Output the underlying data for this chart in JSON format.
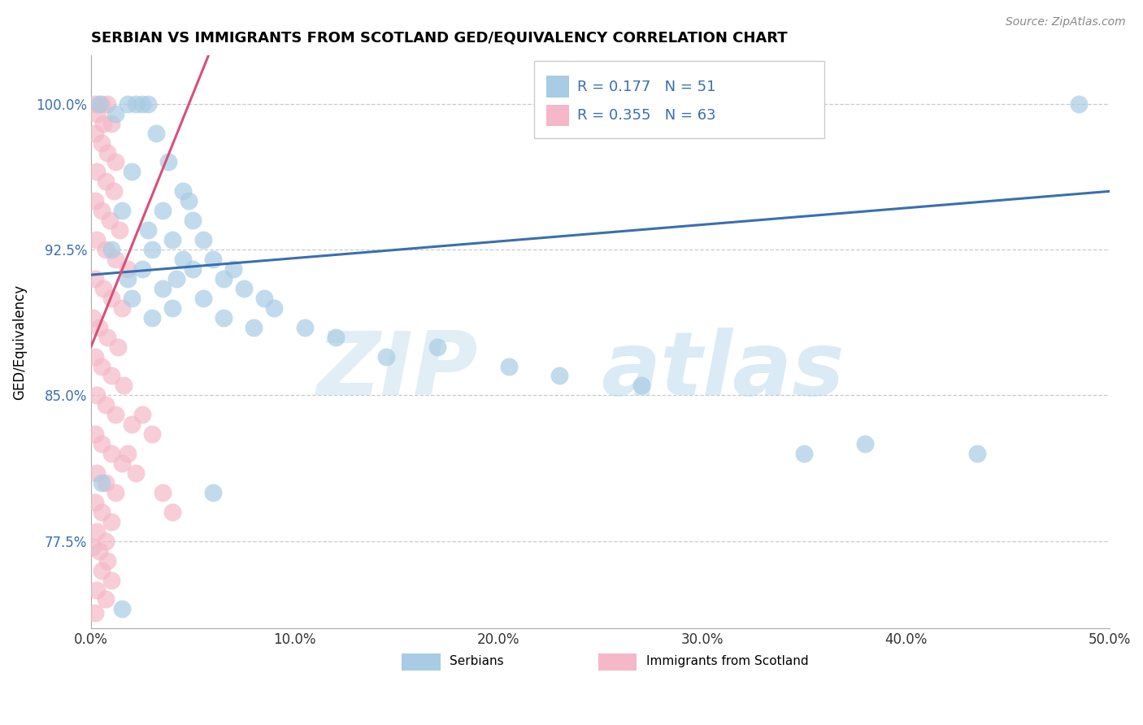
{
  "title": "SERBIAN VS IMMIGRANTS FROM SCOTLAND GED/EQUIVALENCY CORRELATION CHART",
  "source": "Source: ZipAtlas.com",
  "ylabel": "GED/Equivalency",
  "xlim": [
    0.0,
    50.0
  ],
  "ylim": [
    73.0,
    102.5
  ],
  "yticks": [
    77.5,
    85.0,
    92.5,
    100.0
  ],
  "ytick_labels": [
    "77.5%",
    "85.0%",
    "92.5%",
    "100.0%"
  ],
  "xticks": [
    0.0,
    10.0,
    20.0,
    30.0,
    40.0,
    50.0
  ],
  "xtick_labels": [
    "0.0%",
    "10.0%",
    "20.0%",
    "30.0%",
    "40.0%",
    "50.0%"
  ],
  "legend_R_blue": "R = 0.177",
  "legend_N_blue": "N = 51",
  "legend_R_pink": "R = 0.355",
  "legend_N_pink": "N = 63",
  "blue_color": "#a8cce4",
  "pink_color": "#f4b8c8",
  "blue_line_color": "#3a6faf",
  "pink_line_color": "#d94f78",
  "blue_trendline": [
    [
      0,
      91.2
    ],
    [
      50,
      95.5
    ]
  ],
  "pink_trendline": [
    [
      0,
      87.5
    ],
    [
      5,
      100.5
    ]
  ],
  "blue_scatter": [
    [
      0.4,
      100.0
    ],
    [
      1.8,
      100.0
    ],
    [
      2.2,
      100.0
    ],
    [
      2.5,
      100.0
    ],
    [
      2.8,
      100.0
    ],
    [
      1.2,
      99.5
    ],
    [
      3.2,
      98.5
    ],
    [
      3.8,
      97.0
    ],
    [
      2.0,
      96.5
    ],
    [
      4.5,
      95.5
    ],
    [
      4.8,
      95.0
    ],
    [
      1.5,
      94.5
    ],
    [
      3.5,
      94.5
    ],
    [
      5.0,
      94.0
    ],
    [
      2.8,
      93.5
    ],
    [
      4.0,
      93.0
    ],
    [
      5.5,
      93.0
    ],
    [
      1.0,
      92.5
    ],
    [
      3.0,
      92.5
    ],
    [
      4.5,
      92.0
    ],
    [
      6.0,
      92.0
    ],
    [
      2.5,
      91.5
    ],
    [
      5.0,
      91.5
    ],
    [
      7.0,
      91.5
    ],
    [
      1.8,
      91.0
    ],
    [
      4.2,
      91.0
    ],
    [
      6.5,
      91.0
    ],
    [
      3.5,
      90.5
    ],
    [
      7.5,
      90.5
    ],
    [
      2.0,
      90.0
    ],
    [
      5.5,
      90.0
    ],
    [
      8.5,
      90.0
    ],
    [
      4.0,
      89.5
    ],
    [
      9.0,
      89.5
    ],
    [
      3.0,
      89.0
    ],
    [
      6.5,
      89.0
    ],
    [
      8.0,
      88.5
    ],
    [
      10.5,
      88.5
    ],
    [
      12.0,
      88.0
    ],
    [
      14.5,
      87.0
    ],
    [
      17.0,
      87.5
    ],
    [
      20.5,
      86.5
    ],
    [
      23.0,
      86.0
    ],
    [
      27.0,
      85.5
    ],
    [
      35.0,
      82.0
    ],
    [
      38.0,
      82.5
    ],
    [
      43.5,
      82.0
    ],
    [
      48.5,
      100.0
    ],
    [
      0.5,
      80.5
    ],
    [
      1.5,
      74.0
    ],
    [
      6.0,
      80.0
    ]
  ],
  "pink_scatter": [
    [
      0.2,
      100.0
    ],
    [
      0.5,
      100.0
    ],
    [
      0.8,
      100.0
    ],
    [
      0.3,
      99.5
    ],
    [
      0.6,
      99.0
    ],
    [
      1.0,
      99.0
    ],
    [
      0.2,
      98.5
    ],
    [
      0.5,
      98.0
    ],
    [
      0.8,
      97.5
    ],
    [
      1.2,
      97.0
    ],
    [
      0.3,
      96.5
    ],
    [
      0.7,
      96.0
    ],
    [
      1.1,
      95.5
    ],
    [
      0.2,
      95.0
    ],
    [
      0.5,
      94.5
    ],
    [
      0.9,
      94.0
    ],
    [
      1.4,
      93.5
    ],
    [
      0.3,
      93.0
    ],
    [
      0.7,
      92.5
    ],
    [
      1.2,
      92.0
    ],
    [
      1.8,
      91.5
    ],
    [
      0.2,
      91.0
    ],
    [
      0.6,
      90.5
    ],
    [
      1.0,
      90.0
    ],
    [
      1.5,
      89.5
    ],
    [
      0.1,
      89.0
    ],
    [
      0.4,
      88.5
    ],
    [
      0.8,
      88.0
    ],
    [
      1.3,
      87.5
    ],
    [
      0.2,
      87.0
    ],
    [
      0.5,
      86.5
    ],
    [
      1.0,
      86.0
    ],
    [
      1.6,
      85.5
    ],
    [
      0.3,
      85.0
    ],
    [
      0.7,
      84.5
    ],
    [
      1.2,
      84.0
    ],
    [
      2.0,
      83.5
    ],
    [
      0.2,
      83.0
    ],
    [
      0.5,
      82.5
    ],
    [
      1.0,
      82.0
    ],
    [
      1.5,
      81.5
    ],
    [
      0.3,
      81.0
    ],
    [
      0.7,
      80.5
    ],
    [
      1.2,
      80.0
    ],
    [
      0.2,
      79.5
    ],
    [
      0.5,
      79.0
    ],
    [
      1.0,
      78.5
    ],
    [
      0.3,
      78.0
    ],
    [
      0.7,
      77.5
    ],
    [
      0.4,
      77.0
    ],
    [
      0.8,
      76.5
    ],
    [
      0.5,
      76.0
    ],
    [
      1.0,
      75.5
    ],
    [
      0.3,
      75.0
    ],
    [
      0.7,
      74.5
    ],
    [
      0.2,
      73.8
    ],
    [
      2.5,
      84.0
    ],
    [
      3.0,
      83.0
    ],
    [
      1.8,
      82.0
    ],
    [
      2.2,
      81.0
    ],
    [
      3.5,
      80.0
    ],
    [
      4.0,
      79.0
    ],
    [
      0.1,
      77.2
    ]
  ]
}
